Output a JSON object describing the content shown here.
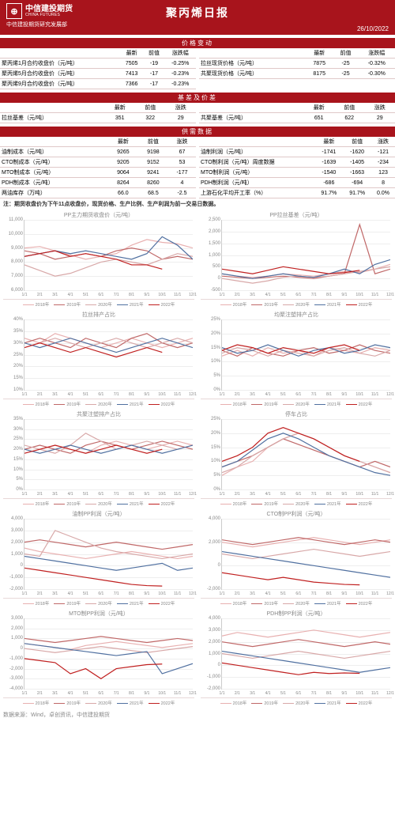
{
  "header": {
    "logo_cn": "中信建投期货",
    "logo_en": "CHINA FUTURES",
    "title": "聚丙烯日报",
    "dept": "中信建投期货研究发展部",
    "date": "26/10/2022"
  },
  "sections": {
    "price": "价格变动",
    "basis": "基差及价差",
    "supply": "供需数据"
  },
  "price_table": {
    "cols": [
      "",
      "最新",
      "前值",
      "涨跌幅"
    ],
    "left": [
      [
        "聚丙烯1月合约收盘价（元/吨）",
        "7505",
        "-19",
        "-0.25%"
      ],
      [
        "聚丙烯5月合约收盘价（元/吨）",
        "7413",
        "-17",
        "-0.23%"
      ],
      [
        "聚丙烯9月合约收盘价（元/吨）",
        "7366",
        "-17",
        "-0.23%"
      ]
    ],
    "right": [
      [
        "拉丝现货价格（元/吨）",
        "7875",
        "-25",
        "-0.32%"
      ],
      [
        "共聚现货价格（元/吨）",
        "8175",
        "-25",
        "-0.30%"
      ]
    ]
  },
  "basis_table": {
    "cols": [
      "",
      "最新",
      "前值",
      "涨跌"
    ],
    "left": [
      [
        "拉丝基差（元/吨）",
        "351",
        "322",
        "29"
      ]
    ],
    "right": [
      [
        "共聚基差（元/吨）",
        "651",
        "622",
        "29"
      ]
    ]
  },
  "supply_table": {
    "cols": [
      "",
      "最新",
      "前值",
      "涨跌"
    ],
    "left": [
      [
        "油制成本（元/吨）",
        "9265",
        "9198",
        "67"
      ],
      [
        "CTO制成本（元/吨）",
        "9205",
        "9152",
        "53"
      ],
      [
        "MTO制成本（元/吨）",
        "9064",
        "9241",
        "-177"
      ],
      [
        "PDH制成本（元/吨）",
        "8264",
        "8260",
        "4"
      ],
      [
        "两油库存（万吨）",
        "66.0",
        "68.5",
        "-2.5"
      ]
    ],
    "right": [
      [
        "油制利润（元/吨）",
        "-1741",
        "-1620",
        "-121"
      ],
      [
        "CTO制利润（元/吨）周度数据",
        "-1639",
        "-1405",
        "-234"
      ],
      [
        "MTO制利润（元/吨）",
        "-1540",
        "-1663",
        "123"
      ],
      [
        "PDH制利润（元/吨）",
        "-686",
        "-694",
        "8"
      ],
      [
        "上游石化平均开工率（%）",
        "91.7%",
        "91.7%",
        "0.0%"
      ]
    ]
  },
  "note": "注：期货收盘价为下午11点收盘价，现货价格、生产比例、生产利润为前一交易日数据。",
  "legend_years": [
    "2018年",
    "2019年",
    "2020年",
    "2021年",
    "2022年"
  ],
  "legend_colors": [
    "#e8b0b0",
    "#c06868",
    "#d8a8a8",
    "#5070a0",
    "#c02020"
  ],
  "x_months": [
    "1/1",
    "2/1",
    "3/1",
    "4/1",
    "5/1",
    "6/1",
    "7/1",
    "8/1",
    "9/1",
    "10/1",
    "11/1",
    "12/1"
  ],
  "charts": [
    {
      "title": "PP主力期货收盘价（元/吨）",
      "ymin": 6000,
      "ymax": 11000,
      "ystep": 1000,
      "series": [
        {
          "c": "#e8b0b0",
          "d": [
            9000,
            9100,
            8800,
            8500,
            8200,
            8400,
            8600,
            9200,
            9600,
            9400,
            9300,
            9000
          ]
        },
        {
          "c": "#c06868",
          "d": [
            8800,
            8600,
            8200,
            8400,
            8600,
            8400,
            8800,
            9000,
            8800,
            8200,
            8400,
            8200
          ]
        },
        {
          "c": "#d8a8a8",
          "d": [
            7800,
            7400,
            7000,
            7200,
            7600,
            8000,
            8200,
            8000,
            7800,
            8200,
            8600,
            8400
          ]
        },
        {
          "c": "#5070a0",
          "d": [
            8400,
            8600,
            8800,
            8600,
            8800,
            8600,
            8400,
            8200,
            8600,
            9800,
            9200,
            8200
          ]
        },
        {
          "c": "#c02020",
          "d": [
            8400,
            8600,
            8800,
            8400,
            8600,
            8400,
            8200,
            7800,
            7800,
            7500,
            null,
            null
          ]
        }
      ]
    },
    {
      "title": "PP拉丝基差（元/吨）",
      "ymin": -500,
      "ymax": 2500,
      "ystep": 500,
      "series": [
        {
          "c": "#e8b0b0",
          "d": [
            200,
            100,
            50,
            100,
            200,
            150,
            100,
            200,
            300,
            250,
            400,
            600
          ]
        },
        {
          "c": "#c06868",
          "d": [
            100,
            50,
            0,
            50,
            100,
            50,
            0,
            100,
            200,
            2300,
            200,
            400
          ]
        },
        {
          "c": "#d8a8a8",
          "d": [
            0,
            -100,
            -200,
            -100,
            50,
            100,
            50,
            100,
            200,
            300,
            400,
            500
          ]
        },
        {
          "c": "#5070a0",
          "d": [
            200,
            100,
            0,
            100,
            200,
            100,
            50,
            200,
            400,
            200,
            600,
            800
          ]
        },
        {
          "c": "#c02020",
          "d": [
            400,
            300,
            200,
            350,
            500,
            400,
            300,
            200,
            250,
            350,
            null,
            null
          ]
        }
      ]
    },
    {
      "title": "拉丝排产占比",
      "ymin": 10,
      "ymax": 40,
      "ystep": 5,
      "pct": true,
      "series": [
        {
          "c": "#e8b0b0",
          "d": [
            32,
            30,
            34,
            32,
            30,
            28,
            30,
            32,
            30,
            28,
            30,
            32
          ]
        },
        {
          "c": "#c06868",
          "d": [
            30,
            32,
            30,
            28,
            32,
            30,
            28,
            32,
            34,
            30,
            28,
            30
          ]
        },
        {
          "c": "#d8a8a8",
          "d": [
            28,
            30,
            32,
            30,
            28,
            30,
            32,
            30,
            28,
            30,
            32,
            30
          ]
        },
        {
          "c": "#5070a0",
          "d": [
            30,
            28,
            30,
            32,
            30,
            28,
            26,
            28,
            30,
            32,
            30,
            28
          ]
        },
        {
          "c": "#c02020",
          "d": [
            28,
            30,
            28,
            26,
            28,
            26,
            24,
            26,
            28,
            26,
            null,
            null
          ]
        }
      ]
    },
    {
      "title": "均聚注塑排产占比",
      "ymin": 0,
      "ymax": 25,
      "ystep": 5,
      "pct": true,
      "series": [
        {
          "c": "#e8b0b0",
          "d": [
            12,
            14,
            12,
            15,
            13,
            14,
            12,
            15,
            14,
            13,
            15,
            14
          ]
        },
        {
          "c": "#c06868",
          "d": [
            14,
            12,
            15,
            13,
            12,
            14,
            15,
            13,
            14,
            16,
            14,
            13
          ]
        },
        {
          "c": "#d8a8a8",
          "d": [
            13,
            15,
            14,
            12,
            14,
            13,
            12,
            14,
            15,
            13,
            12,
            14
          ]
        },
        {
          "c": "#5070a0",
          "d": [
            15,
            13,
            14,
            16,
            14,
            12,
            14,
            15,
            13,
            14,
            16,
            15
          ]
        },
        {
          "c": "#c02020",
          "d": [
            14,
            16,
            15,
            13,
            15,
            14,
            13,
            15,
            16,
            14,
            null,
            null
          ]
        }
      ]
    },
    {
      "title": "共聚注塑排产占比",
      "ymin": 0,
      "ymax": 35,
      "ystep": 5,
      "pct": true,
      "series": [
        {
          "c": "#e8b0b0",
          "d": [
            18,
            20,
            22,
            20,
            18,
            22,
            24,
            22,
            20,
            22,
            24,
            22
          ]
        },
        {
          "c": "#c06868",
          "d": [
            20,
            22,
            20,
            18,
            22,
            24,
            22,
            20,
            22,
            24,
            22,
            20
          ]
        },
        {
          "c": "#d8a8a8",
          "d": [
            22,
            20,
            18,
            22,
            28,
            24,
            20,
            22,
            24,
            22,
            20,
            22
          ]
        },
        {
          "c": "#5070a0",
          "d": [
            20,
            18,
            20,
            22,
            20,
            18,
            20,
            22,
            20,
            18,
            20,
            22
          ]
        },
        {
          "c": "#c02020",
          "d": [
            18,
            20,
            22,
            20,
            18,
            20,
            22,
            20,
            18,
            20,
            null,
            null
          ]
        }
      ]
    },
    {
      "title": "停车占比",
      "ymin": 0,
      "ymax": 25,
      "ystep": 5,
      "pct": true,
      "series": [
        {
          "c": "#e8b0b0",
          "d": [
            5,
            8,
            10,
            15,
            18,
            20,
            18,
            15,
            12,
            10,
            8,
            6
          ]
        },
        {
          "c": "#c06868",
          "d": [
            8,
            10,
            12,
            15,
            18,
            16,
            14,
            12,
            10,
            8,
            10,
            8
          ]
        },
        {
          "c": "#d8a8a8",
          "d": [
            6,
            8,
            12,
            15,
            18,
            20,
            18,
            15,
            12,
            10,
            8,
            6
          ]
        },
        {
          "c": "#5070a0",
          "d": [
            8,
            10,
            14,
            18,
            20,
            18,
            15,
            12,
            10,
            8,
            6,
            5
          ]
        },
        {
          "c": "#c02020",
          "d": [
            10,
            12,
            15,
            20,
            22,
            20,
            18,
            15,
            12,
            10,
            null,
            null
          ]
        }
      ]
    },
    {
      "title": "油制PP利润（元/吨）",
      "ymin": -2000,
      "ymax": 4000,
      "ystep": 1000,
      "series": [
        {
          "c": "#e8b0b0",
          "d": [
            1500,
            1200,
            1000,
            800,
            600,
            800,
            1000,
            1200,
            1000,
            800,
            600,
            800
          ]
        },
        {
          "c": "#c06868",
          "d": [
            2000,
            2200,
            2000,
            1800,
            1600,
            1800,
            2000,
            1800,
            1600,
            1400,
            1600,
            1800
          ]
        },
        {
          "c": "#d8a8a8",
          "d": [
            1000,
            800,
            3000,
            2500,
            2000,
            1500,
            1200,
            1000,
            800,
            600,
            800,
            1000
          ]
        },
        {
          "c": "#5070a0",
          "d": [
            800,
            600,
            400,
            200,
            0,
            -200,
            -400,
            -200,
            0,
            200,
            -400,
            -200
          ]
        },
        {
          "c": "#c02020",
          "d": [
            -200,
            -400,
            -600,
            -800,
            -1000,
            -1200,
            -1400,
            -1600,
            -1700,
            -1741,
            null,
            null
          ]
        }
      ]
    },
    {
      "title": "CTO制PP利润（元/吨）",
      "ymin": -2000,
      "ymax": 4000,
      "ystep": 2000,
      "series": [
        {
          "c": "#e8b0b0",
          "d": [
            2000,
            1800,
            1600,
            1800,
            2000,
            2200,
            2400,
            2200,
            2000,
            1800,
            2000,
            2200
          ]
        },
        {
          "c": "#c06868",
          "d": [
            2200,
            2000,
            1800,
            2000,
            2200,
            2400,
            2200,
            2000,
            1800,
            2000,
            2200,
            2000
          ]
        },
        {
          "c": "#d8a8a8",
          "d": [
            1000,
            800,
            600,
            800,
            1000,
            1200,
            1400,
            1200,
            1000,
            800,
            1000,
            1200
          ]
        },
        {
          "c": "#5070a0",
          "d": [
            1200,
            1000,
            800,
            600,
            400,
            200,
            0,
            -200,
            -400,
            -600,
            -800,
            -1000
          ]
        },
        {
          "c": "#c02020",
          "d": [
            -600,
            -800,
            -1000,
            -1200,
            -1000,
            -1200,
            -1400,
            -1500,
            -1600,
            -1639,
            null,
            null
          ]
        }
      ]
    },
    {
      "title": "MTO制PP利润（元/吨）",
      "ymin": -4000,
      "ymax": 3000,
      "ystep": 1000,
      "series": [
        {
          "c": "#e8b0b0",
          "d": [
            500,
            300,
            100,
            -100,
            300,
            500,
            700,
            500,
            300,
            100,
            300,
            500
          ]
        },
        {
          "c": "#c06868",
          "d": [
            1000,
            800,
            600,
            800,
            1000,
            1200,
            1000,
            800,
            600,
            800,
            1000,
            800
          ]
        },
        {
          "c": "#d8a8a8",
          "d": [
            0,
            -200,
            -400,
            -200,
            0,
            200,
            0,
            -200,
            -400,
            -200,
            0,
            200
          ]
        },
        {
          "c": "#5070a0",
          "d": [
            500,
            300,
            100,
            -100,
            -300,
            -500,
            -700,
            -500,
            -300,
            -2500,
            -2000,
            -1500
          ]
        },
        {
          "c": "#c02020",
          "d": [
            -1000,
            -1200,
            -1400,
            -2500,
            -2000,
            -3000,
            -2000,
            -1800,
            -1600,
            -1540,
            null,
            null
          ]
        }
      ]
    },
    {
      "title": "PDH制PP利润（元/吨）",
      "ymin": -2000,
      "ymax": 4000,
      "ystep": 1000,
      "series": [
        {
          "c": "#e8b0b0",
          "d": [
            2500,
            2800,
            2600,
            2400,
            2600,
            2800,
            3000,
            2800,
            2600,
            2400,
            2600,
            2800
          ]
        },
        {
          "c": "#c06868",
          "d": [
            2000,
            1800,
            1600,
            1800,
            2000,
            2200,
            2000,
            1800,
            1600,
            1800,
            2000,
            1800
          ]
        },
        {
          "c": "#d8a8a8",
          "d": [
            1000,
            800,
            600,
            800,
            1000,
            1200,
            1000,
            800,
            600,
            800,
            1000,
            1200
          ]
        },
        {
          "c": "#5070a0",
          "d": [
            1200,
            1000,
            800,
            600,
            400,
            200,
            0,
            -200,
            -400,
            -600,
            -400,
            -200
          ]
        },
        {
          "c": "#c02020",
          "d": [
            200,
            0,
            -200,
            -400,
            -600,
            -800,
            -600,
            -700,
            -650,
            -686,
            null,
            null
          ]
        }
      ]
    }
  ],
  "source": "数据来源：Wind，卓创资讯，中信建投期货"
}
